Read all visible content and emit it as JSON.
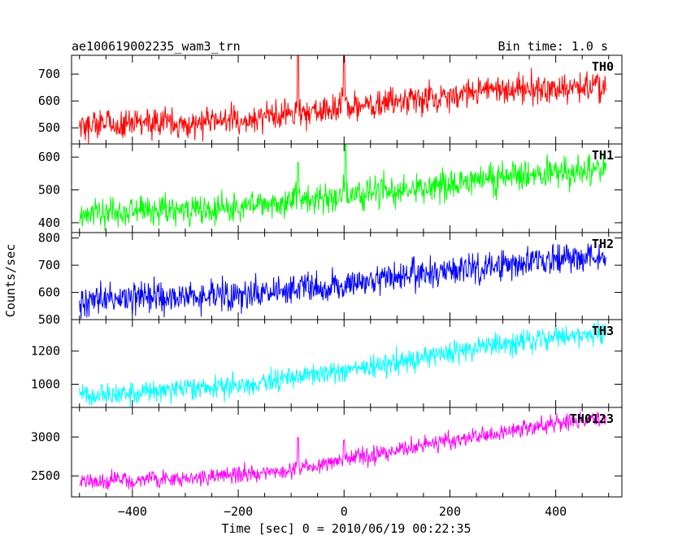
{
  "header": {
    "title": "ae100619002235_wam3_trn",
    "bin_time": "Bin time: 1.0 s"
  },
  "chart_data": {
    "type": "line",
    "title": "ae100619002235_wam3_trn",
    "subtitle": "Bin time: 1.0 s",
    "xlabel": "Time [sec] 0 = 2010/06/19 00:22:35",
    "ylabel": "Counts/sec",
    "xlim": [
      -515,
      525
    ],
    "x_ticks": [
      -400,
      -200,
      0,
      200,
      400
    ],
    "x_tick_labels": [
      "−400",
      "−200",
      "0",
      "200",
      "400"
    ],
    "x_data_range": [
      -500,
      495
    ],
    "bin_time": 1.0,
    "grid": false,
    "legend": "none",
    "panels": [
      {
        "name": "TH0",
        "color": "#ff0000",
        "ylim": [
          440,
          770
        ],
        "yticks": [
          500,
          600,
          700
        ],
        "trend_x": [
          -500,
          -250,
          -100,
          0,
          150,
          250,
          400,
          495
        ],
        "trend_y": [
          510,
          520,
          548,
          575,
          605,
          635,
          645,
          648
        ],
        "noise_amplitude": 28,
        "spikes": [
          {
            "x": -87,
            "peak": 770
          },
          {
            "x": 0,
            "peak": 770
          }
        ]
      },
      {
        "name": "TH1",
        "color": "#00ff00",
        "ylim": [
          370,
          640
        ],
        "yticks": [
          400,
          500,
          600
        ],
        "trend_x": [
          -500,
          -250,
          -100,
          0,
          150,
          300,
          495
        ],
        "trend_y": [
          428,
          445,
          462,
          480,
          505,
          540,
          565
        ],
        "noise_amplitude": 24,
        "spikes": [
          {
            "x": -87,
            "peak": 580
          },
          {
            "x": 3,
            "peak": 640
          }
        ]
      },
      {
        "name": "TH2",
        "color": "#0000ff",
        "ylim": [
          500,
          820
        ],
        "yticks": [
          500,
          600,
          700,
          800
        ],
        "trend_x": [
          -500,
          -200,
          0,
          200,
          400,
          495
        ],
        "trend_y": [
          570,
          590,
          630,
          675,
          720,
          735
        ],
        "noise_amplitude": 28,
        "spikes": []
      },
      {
        "name": "TH3",
        "color": "#00ffff",
        "ylim": [
          860,
          1390
        ],
        "yticks": [
          1000,
          1200
        ],
        "trend_x": [
          -500,
          -200,
          0,
          200,
          400,
          495
        ],
        "trend_y": [
          920,
          990,
          1080,
          1190,
          1290,
          1310
        ],
        "noise_amplitude": 34,
        "spikes": []
      },
      {
        "name": "TH0123",
        "color": "#ff00ff",
        "ylim": [
          2230,
          3380
        ],
        "yticks": [
          2500,
          3000
        ],
        "trend_x": [
          -500,
          -250,
          -100,
          0,
          200,
          400,
          495
        ],
        "trend_y": [
          2420,
          2490,
          2560,
          2700,
          2950,
          3170,
          3230
        ],
        "noise_amplitude": 55,
        "spikes": [
          {
            "x": -87,
            "peak": 2990
          },
          {
            "x": 0,
            "peak": 2960
          }
        ]
      }
    ]
  }
}
